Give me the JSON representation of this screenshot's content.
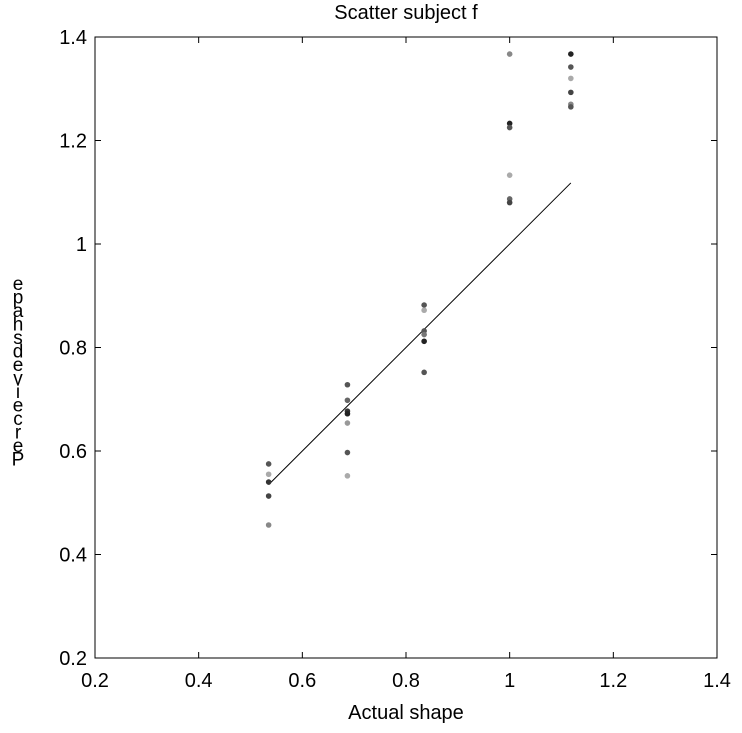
{
  "chart_data": {
    "type": "scatter",
    "title": "Scatter subject f",
    "xlabel": "Actual shape",
    "ylabel": "Perceived shape",
    "xlim": [
      0.2,
      1.4
    ],
    "ylim": [
      0.2,
      1.4
    ],
    "x_ticks": [
      "0.2",
      "0.4",
      "0.6",
      "0.8",
      "1",
      "1.2",
      "1.4"
    ],
    "y_ticks": [
      "0.2",
      "0.4",
      "0.6",
      "0.8",
      "1",
      "1.2",
      "1.4"
    ],
    "grid": false,
    "points": [
      {
        "x": 0.535,
        "y": 0.575,
        "color": "#555555"
      },
      {
        "x": 0.535,
        "y": 0.555,
        "color": "#aaaaaa"
      },
      {
        "x": 0.535,
        "y": 0.54,
        "color": "#333333"
      },
      {
        "x": 0.535,
        "y": 0.513,
        "color": "#444444"
      },
      {
        "x": 0.535,
        "y": 0.457,
        "color": "#888888"
      },
      {
        "x": 0.687,
        "y": 0.728,
        "color": "#555555"
      },
      {
        "x": 0.687,
        "y": 0.698,
        "color": "#666666"
      },
      {
        "x": 0.687,
        "y": 0.677,
        "color": "#333333"
      },
      {
        "x": 0.687,
        "y": 0.672,
        "color": "#222222"
      },
      {
        "x": 0.687,
        "y": 0.654,
        "color": "#999999"
      },
      {
        "x": 0.687,
        "y": 0.597,
        "color": "#555555"
      },
      {
        "x": 0.687,
        "y": 0.552,
        "color": "#aaaaaa"
      },
      {
        "x": 0.835,
        "y": 0.882,
        "color": "#555555"
      },
      {
        "x": 0.835,
        "y": 0.872,
        "color": "#aaaaaa"
      },
      {
        "x": 0.835,
        "y": 0.832,
        "color": "#555555"
      },
      {
        "x": 0.835,
        "y": 0.825,
        "color": "#777777"
      },
      {
        "x": 0.835,
        "y": 0.812,
        "color": "#222222"
      },
      {
        "x": 0.835,
        "y": 0.752,
        "color": "#555555"
      },
      {
        "x": 1.0,
        "y": 1.367,
        "color": "#888888"
      },
      {
        "x": 1.0,
        "y": 1.233,
        "color": "#222222"
      },
      {
        "x": 1.0,
        "y": 1.225,
        "color": "#555555"
      },
      {
        "x": 1.0,
        "y": 1.133,
        "color": "#aaaaaa"
      },
      {
        "x": 1.0,
        "y": 1.087,
        "color": "#666666"
      },
      {
        "x": 1.0,
        "y": 1.08,
        "color": "#444444"
      },
      {
        "x": 1.118,
        "y": 1.367,
        "color": "#222222"
      },
      {
        "x": 1.118,
        "y": 1.342,
        "color": "#555555"
      },
      {
        "x": 1.118,
        "y": 1.32,
        "color": "#aaaaaa"
      },
      {
        "x": 1.118,
        "y": 1.293,
        "color": "#444444"
      },
      {
        "x": 1.118,
        "y": 1.27,
        "color": "#888888"
      },
      {
        "x": 1.118,
        "y": 1.265,
        "color": "#555555"
      }
    ],
    "fit_line": {
      "x": [
        0.535,
        1.118
      ],
      "y": [
        0.535,
        1.118
      ],
      "color": "#000000"
    }
  }
}
